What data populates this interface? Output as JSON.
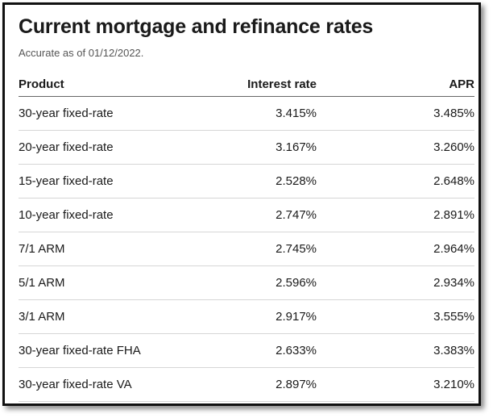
{
  "title": "Current mortgage and refinance rates",
  "subtitle": "Accurate as of 01/12/2022.",
  "table": {
    "headers": [
      "Product",
      "Interest rate",
      "APR"
    ],
    "rows": [
      [
        "30-year fixed-rate",
        "3.415%",
        "3.485%"
      ],
      [
        "20-year fixed-rate",
        "3.167%",
        "3.260%"
      ],
      [
        "15-year fixed-rate",
        "2.528%",
        "2.648%"
      ],
      [
        "10-year fixed-rate",
        "2.747%",
        "2.891%"
      ],
      [
        "7/1 ARM",
        "2.745%",
        "2.964%"
      ],
      [
        "5/1 ARM",
        "2.596%",
        "2.934%"
      ],
      [
        "3/1 ARM",
        "2.917%",
        "3.555%"
      ],
      [
        "30-year fixed-rate FHA",
        "2.633%",
        "3.383%"
      ],
      [
        "30-year fixed-rate VA",
        "2.897%",
        "3.210%"
      ]
    ]
  }
}
